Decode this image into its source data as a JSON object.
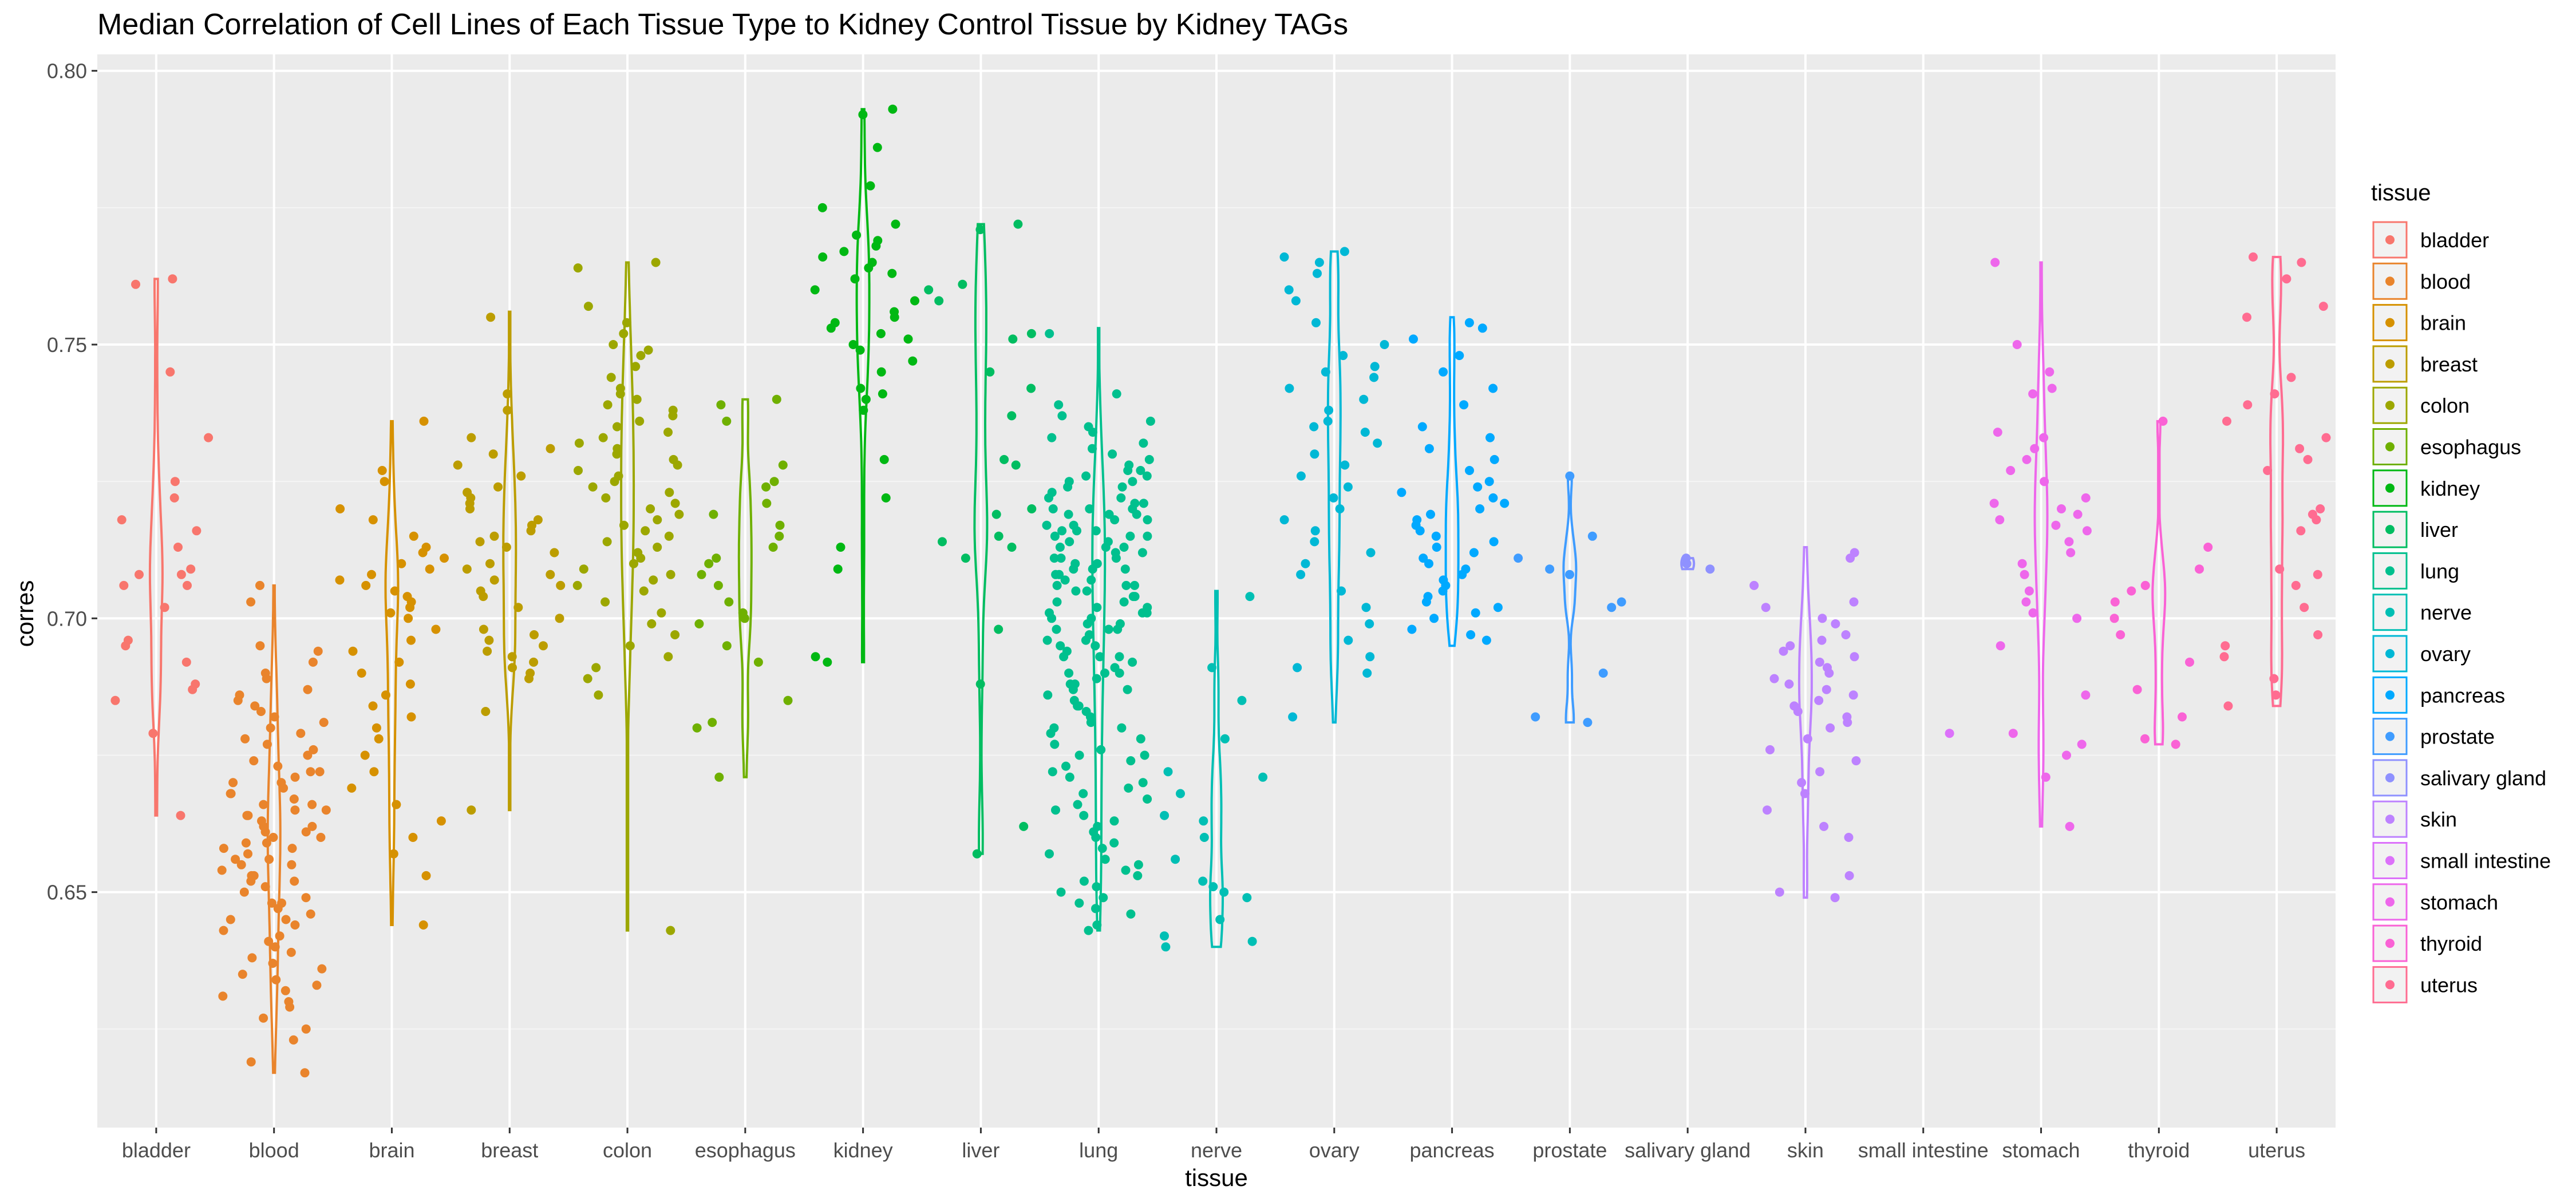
{
  "chart_data": {
    "type": "violin-jitter",
    "title": "Median Correlation of Cell Lines of Each Tissue Type to Kidney Control Tissue by Kidney TAGs",
    "xlabel": "tissue",
    "ylabel": "corres",
    "ylim": [
      0.607,
      0.803
    ],
    "yticks": [
      0.65,
      0.7,
      0.75,
      0.8
    ],
    "ytick_labels": [
      "0.65",
      "0.70",
      "0.75",
      "0.80"
    ],
    "grid": true,
    "background": "#ebebeb",
    "legend": {
      "title": "tissue",
      "position": "right"
    },
    "categories": [
      "bladder",
      "blood",
      "brain",
      "breast",
      "colon",
      "esophagus",
      "kidney",
      "liver",
      "lung",
      "nerve",
      "ovary",
      "pancreas",
      "prostate",
      "salivary gland",
      "skin",
      "small intestine",
      "stomach",
      "thyroid",
      "uterus"
    ],
    "series": [
      {
        "name": "bladder",
        "color": "#F8766D",
        "range": [
          0.664,
          0.762
        ],
        "values": [
          0.762,
          0.761,
          0.745,
          0.733,
          0.725,
          0.722,
          0.718,
          0.716,
          0.713,
          0.709,
          0.708,
          0.708,
          0.706,
          0.706,
          0.702,
          0.696,
          0.695,
          0.692,
          0.688,
          0.687,
          0.685,
          0.679,
          0.664
        ]
      },
      {
        "name": "blood",
        "color": "#E9842C",
        "range": [
          0.617,
          0.706
        ],
        "values": [
          0.706,
          0.703,
          0.695,
          0.694,
          0.692,
          0.69,
          0.689,
          0.687,
          0.686,
          0.685,
          0.684,
          0.683,
          0.682,
          0.681,
          0.68,
          0.679,
          0.678,
          0.677,
          0.676,
          0.675,
          0.674,
          0.673,
          0.672,
          0.671,
          0.67,
          0.669,
          0.668,
          0.667,
          0.666,
          0.665,
          0.664,
          0.663,
          0.662,
          0.661,
          0.66,
          0.659,
          0.658,
          0.657,
          0.656,
          0.655,
          0.654,
          0.653,
          0.652,
          0.651,
          0.65,
          0.649,
          0.648,
          0.647,
          0.646,
          0.645,
          0.644,
          0.643,
          0.642,
          0.641,
          0.64,
          0.639,
          0.638,
          0.637,
          0.636,
          0.635,
          0.634,
          0.633,
          0.632,
          0.631,
          0.63,
          0.629,
          0.627,
          0.625,
          0.623,
          0.619,
          0.617,
          0.665,
          0.66,
          0.655,
          0.67,
          0.658,
          0.662,
          0.648,
          0.652,
          0.668,
          0.672,
          0.645,
          0.664,
          0.656,
          0.661,
          0.653,
          0.666,
          0.659
        ]
      },
      {
        "name": "brain",
        "color": "#D69100",
        "range": [
          0.644,
          0.736
        ],
        "values": [
          0.736,
          0.727,
          0.725,
          0.72,
          0.718,
          0.715,
          0.713,
          0.712,
          0.711,
          0.71,
          0.709,
          0.708,
          0.707,
          0.706,
          0.705,
          0.704,
          0.703,
          0.702,
          0.701,
          0.7,
          0.698,
          0.696,
          0.694,
          0.692,
          0.69,
          0.688,
          0.686,
          0.684,
          0.682,
          0.68,
          0.678,
          0.675,
          0.672,
          0.669,
          0.666,
          0.663,
          0.66,
          0.657,
          0.653,
          0.644
        ]
      },
      {
        "name": "breast",
        "color": "#BC9D00",
        "range": [
          0.665,
          0.756
        ],
        "values": [
          0.755,
          0.741,
          0.738,
          0.733,
          0.731,
          0.73,
          0.728,
          0.726,
          0.724,
          0.723,
          0.722,
          0.721,
          0.72,
          0.718,
          0.717,
          0.716,
          0.715,
          0.714,
          0.713,
          0.712,
          0.71,
          0.709,
          0.708,
          0.707,
          0.706,
          0.705,
          0.704,
          0.702,
          0.7,
          0.698,
          0.697,
          0.696,
          0.695,
          0.694,
          0.693,
          0.692,
          0.691,
          0.69,
          0.689,
          0.683,
          0.665
        ]
      },
      {
        "name": "colon",
        "color": "#9CA700",
        "range": [
          0.643,
          0.765
        ],
        "values": [
          0.765,
          0.764,
          0.757,
          0.754,
          0.752,
          0.75,
          0.749,
          0.748,
          0.746,
          0.744,
          0.742,
          0.741,
          0.74,
          0.739,
          0.738,
          0.737,
          0.736,
          0.735,
          0.734,
          0.733,
          0.732,
          0.731,
          0.73,
          0.729,
          0.728,
          0.727,
          0.726,
          0.725,
          0.724,
          0.723,
          0.722,
          0.721,
          0.72,
          0.719,
          0.718,
          0.717,
          0.716,
          0.715,
          0.714,
          0.713,
          0.712,
          0.711,
          0.71,
          0.709,
          0.708,
          0.707,
          0.706,
          0.705,
          0.703,
          0.701,
          0.699,
          0.697,
          0.695,
          0.693,
          0.691,
          0.689,
          0.686,
          0.643
        ]
      },
      {
        "name": "esophagus",
        "color": "#6FB000",
        "range": [
          0.671,
          0.74
        ],
        "values": [
          0.74,
          0.739,
          0.736,
          0.728,
          0.725,
          0.724,
          0.721,
          0.719,
          0.717,
          0.715,
          0.713,
          0.711,
          0.71,
          0.708,
          0.706,
          0.703,
          0.701,
          0.7,
          0.699,
          0.695,
          0.692,
          0.685,
          0.681,
          0.68,
          0.671
        ]
      },
      {
        "name": "kidney",
        "color": "#00B813",
        "range": [
          0.692,
          0.793
        ],
        "values": [
          0.793,
          0.792,
          0.786,
          0.779,
          0.775,
          0.772,
          0.77,
          0.769,
          0.768,
          0.767,
          0.766,
          0.765,
          0.764,
          0.763,
          0.762,
          0.76,
          0.758,
          0.756,
          0.755,
          0.754,
          0.753,
          0.752,
          0.751,
          0.75,
          0.749,
          0.747,
          0.745,
          0.742,
          0.741,
          0.74,
          0.738,
          0.729,
          0.722,
          0.713,
          0.709,
          0.693,
          0.692
        ]
      },
      {
        "name": "liver",
        "color": "#00BD61",
        "range": [
          0.657,
          0.772
        ],
        "values": [
          0.772,
          0.771,
          0.761,
          0.76,
          0.758,
          0.752,
          0.751,
          0.745,
          0.742,
          0.737,
          0.729,
          0.728,
          0.72,
          0.719,
          0.715,
          0.714,
          0.713,
          0.711,
          0.698,
          0.688,
          0.662,
          0.657
        ]
      },
      {
        "name": "lung",
        "color": "#00C08E",
        "range": [
          0.643,
          0.753
        ],
        "values": [
          0.752,
          0.741,
          0.739,
          0.737,
          0.736,
          0.735,
          0.734,
          0.733,
          0.732,
          0.731,
          0.73,
          0.729,
          0.728,
          0.727,
          0.726,
          0.725,
          0.724,
          0.723,
          0.722,
          0.721,
          0.72,
          0.719,
          0.718,
          0.717,
          0.716,
          0.715,
          0.714,
          0.713,
          0.712,
          0.711,
          0.71,
          0.709,
          0.708,
          0.707,
          0.706,
          0.705,
          0.704,
          0.703,
          0.702,
          0.701,
          0.7,
          0.699,
          0.698,
          0.697,
          0.696,
          0.695,
          0.694,
          0.693,
          0.692,
          0.691,
          0.69,
          0.689,
          0.688,
          0.687,
          0.686,
          0.685,
          0.684,
          0.683,
          0.682,
          0.681,
          0.68,
          0.679,
          0.678,
          0.677,
          0.676,
          0.675,
          0.674,
          0.673,
          0.672,
          0.671,
          0.67,
          0.669,
          0.668,
          0.667,
          0.666,
          0.665,
          0.664,
          0.663,
          0.662,
          0.661,
          0.66,
          0.659,
          0.658,
          0.657,
          0.656,
          0.655,
          0.654,
          0.653,
          0.652,
          0.651,
          0.65,
          0.649,
          0.648,
          0.647,
          0.646,
          0.644,
          0.643,
          0.72,
          0.715,
          0.71,
          0.705,
          0.7,
          0.725,
          0.69,
          0.712,
          0.718,
          0.702,
          0.708,
          0.698,
          0.722,
          0.716,
          0.695,
          0.713,
          0.706,
          0.688,
          0.72,
          0.711,
          0.704,
          0.693,
          0.717,
          0.709,
          0.684,
          0.727,
          0.719,
          0.701,
          0.696,
          0.714,
          0.707,
          0.724,
          0.699,
          0.68,
          0.716,
          0.703,
          0.711,
          0.69,
          0.721,
          0.706,
          0.675,
          0.713,
          0.698,
          0.719,
          0.687,
          0.709,
          0.701,
          0.726,
          0.693,
          0.715
        ]
      },
      {
        "name": "nerve",
        "color": "#00BFB4",
        "range": [
          0.64,
          0.705
        ],
        "values": [
          0.704,
          0.691,
          0.685,
          0.678,
          0.672,
          0.671,
          0.668,
          0.664,
          0.663,
          0.66,
          0.656,
          0.652,
          0.651,
          0.65,
          0.649,
          0.645,
          0.642,
          0.641,
          0.64
        ]
      },
      {
        "name": "ovary",
        "color": "#00B8D5",
        "range": [
          0.681,
          0.767
        ],
        "values": [
          0.767,
          0.766,
          0.765,
          0.763,
          0.76,
          0.758,
          0.754,
          0.75,
          0.748,
          0.746,
          0.745,
          0.744,
          0.742,
          0.74,
          0.738,
          0.736,
          0.735,
          0.734,
          0.732,
          0.73,
          0.728,
          0.726,
          0.724,
          0.722,
          0.72,
          0.718,
          0.716,
          0.714,
          0.712,
          0.71,
          0.708,
          0.705,
          0.702,
          0.699,
          0.696,
          0.693,
          0.691,
          0.69,
          0.682
        ]
      },
      {
        "name": "pancreas",
        "color": "#00A9FF",
        "range": [
          0.695,
          0.755
        ],
        "values": [
          0.754,
          0.753,
          0.751,
          0.748,
          0.745,
          0.742,
          0.739,
          0.735,
          0.733,
          0.731,
          0.729,
          0.727,
          0.725,
          0.724,
          0.723,
          0.722,
          0.721,
          0.72,
          0.719,
          0.718,
          0.717,
          0.716,
          0.715,
          0.714,
          0.713,
          0.712,
          0.711,
          0.71,
          0.709,
          0.708,
          0.707,
          0.706,
          0.705,
          0.704,
          0.703,
          0.702,
          0.701,
          0.7,
          0.698,
          0.697,
          0.696
        ]
      },
      {
        "name": "prostate",
        "color": "#3F9CFF",
        "range": [
          0.681,
          0.726
        ],
        "values": [
          0.726,
          0.715,
          0.711,
          0.709,
          0.708,
          0.703,
          0.702,
          0.69,
          0.682,
          0.681
        ]
      },
      {
        "name": "salivary gland",
        "color": "#8F91FF",
        "range": [
          0.709,
          0.711
        ],
        "values": [
          0.711,
          0.71,
          0.709
        ]
      },
      {
        "name": "skin",
        "color": "#BD82FF",
        "range": [
          0.649,
          0.713
        ],
        "values": [
          0.712,
          0.711,
          0.706,
          0.703,
          0.702,
          0.7,
          0.699,
          0.697,
          0.696,
          0.695,
          0.694,
          0.693,
          0.692,
          0.691,
          0.69,
          0.689,
          0.688,
          0.687,
          0.686,
          0.685,
          0.684,
          0.683,
          0.682,
          0.681,
          0.68,
          0.678,
          0.676,
          0.674,
          0.672,
          0.67,
          0.668,
          0.665,
          0.662,
          0.66,
          0.653,
          0.65,
          0.649
        ]
      },
      {
        "name": "small intestine",
        "color": "#DC71FA",
        "range": [
          0.679,
          0.679
        ],
        "values": [
          0.679
        ]
      },
      {
        "name": "stomach",
        "color": "#EE67EB",
        "range": [
          0.662,
          0.765
        ],
        "values": [
          0.765,
          0.75,
          0.745,
          0.742,
          0.741,
          0.734,
          0.733,
          0.731,
          0.729,
          0.727,
          0.725,
          0.722,
          0.721,
          0.72,
          0.719,
          0.718,
          0.717,
          0.716,
          0.714,
          0.712,
          0.71,
          0.708,
          0.705,
          0.703,
          0.701,
          0.7,
          0.695,
          0.686,
          0.679,
          0.677,
          0.675,
          0.671,
          0.662
        ]
      },
      {
        "name": "thyroid",
        "color": "#FA62D5",
        "range": [
          0.677,
          0.736
        ],
        "values": [
          0.736,
          0.713,
          0.709,
          0.706,
          0.705,
          0.703,
          0.7,
          0.697,
          0.692,
          0.687,
          0.682,
          0.678,
          0.677
        ]
      },
      {
        "name": "uterus",
        "color": "#FF6C91",
        "range": [
          0.684,
          0.766
        ],
        "values": [
          0.766,
          0.765,
          0.762,
          0.757,
          0.755,
          0.744,
          0.741,
          0.739,
          0.736,
          0.733,
          0.731,
          0.729,
          0.727,
          0.72,
          0.719,
          0.718,
          0.716,
          0.709,
          0.708,
          0.706,
          0.702,
          0.697,
          0.695,
          0.693,
          0.689,
          0.686,
          0.684
        ]
      }
    ]
  }
}
